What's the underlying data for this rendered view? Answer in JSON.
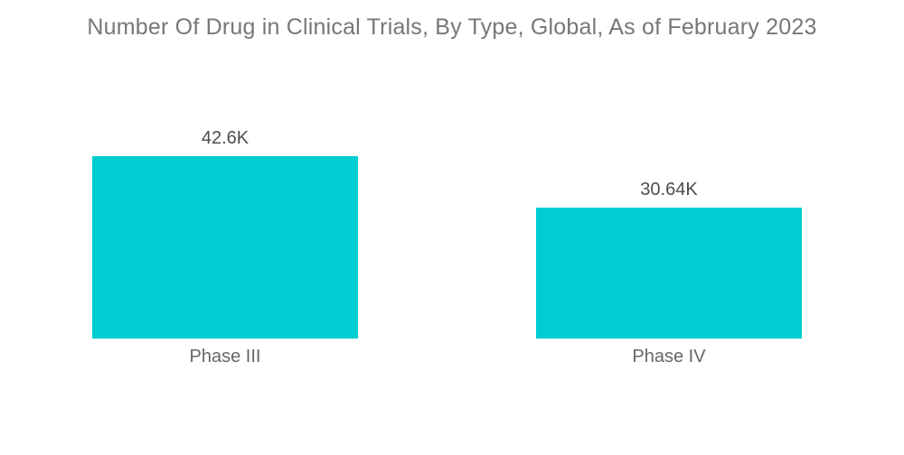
{
  "chart_data": {
    "type": "bar",
    "title": "Number Of Drug in Clinical Trials, By Type, Global, As of February 2023",
    "categories": [
      "Phase III",
      "Phase IV"
    ],
    "values": [
      42600,
      30640
    ],
    "value_labels": [
      "42.6K",
      "30.64K"
    ],
    "xlabel": "",
    "ylabel": "",
    "ylim": [
      0,
      42600
    ],
    "grid": false,
    "legend": "none",
    "axes_visible": false,
    "bar_color": "#00CDD1",
    "title_color": "#777777",
    "value_label_color": "#4d4d4d",
    "category_label_color": "#666666",
    "background_color": "#ffffff"
  }
}
